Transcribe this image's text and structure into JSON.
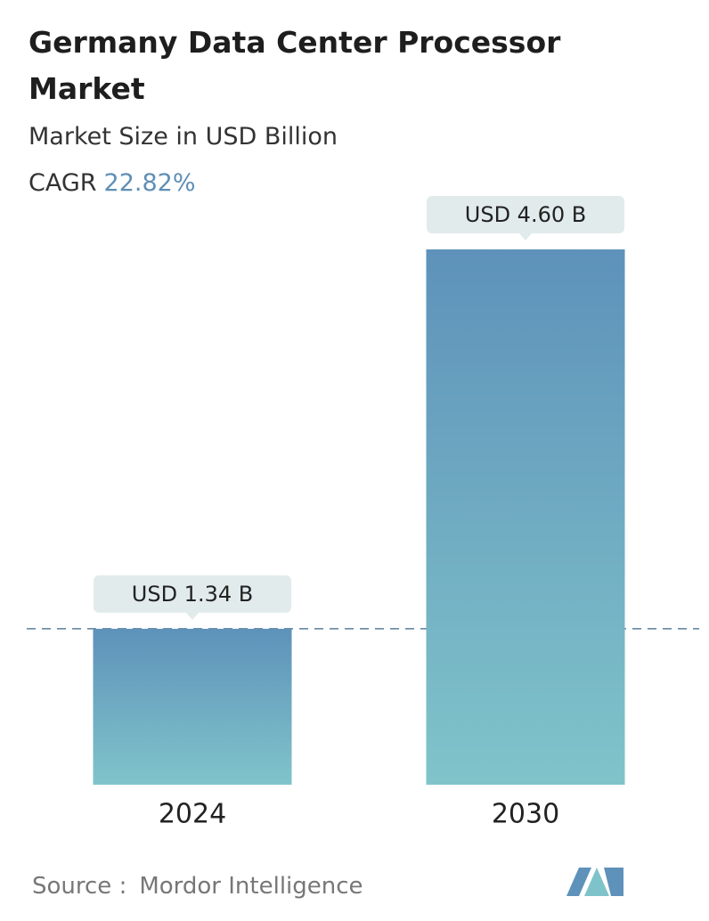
{
  "chart_data": {
    "type": "bar",
    "title": "Germany Data Center Processor Market",
    "subtitle": "Market Size in USD Billion",
    "cagr_label": "CAGR",
    "cagr_value": "22.82%",
    "categories": [
      "2024",
      "2030"
    ],
    "values": [
      1.34,
      4.6
    ],
    "value_labels": [
      "USD 1.34 B",
      "USD 4.60 B"
    ],
    "gradient": [
      "#5e92ba",
      "#80c4ca"
    ],
    "source_label": "Source :",
    "source": "Mordor Intelligence"
  }
}
